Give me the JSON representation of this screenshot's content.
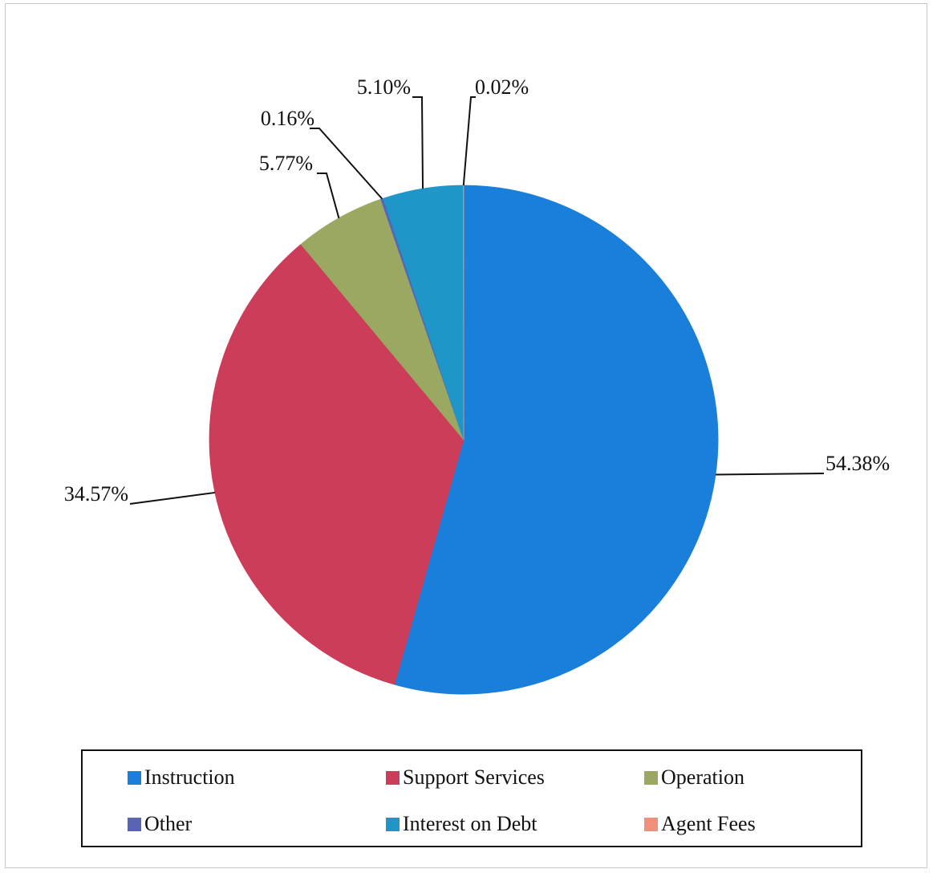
{
  "chart_data": {
    "type": "pie",
    "categories": [
      "Instruction",
      "Support Services",
      "Operation",
      "Other",
      "Interest on Debt",
      "Agent Fees"
    ],
    "values": [
      54.38,
      34.57,
      5.77,
      0.16,
      5.1,
      0.02
    ],
    "data_labels": [
      "54.38%",
      "34.57%",
      "5.77%",
      "0.16%",
      "5.10%",
      "0.02%"
    ],
    "colors": [
      "#1a7fdb",
      "#cc3d5a",
      "#9aa862",
      "#5a64b4",
      "#1e96c8",
      "#f0907a"
    ],
    "start_angle_deg": 0,
    "direction": "clockwise",
    "legend_placement": "bottom",
    "title": ""
  },
  "legend": {
    "items": [
      {
        "label": "Instruction",
        "color": "#1a7fdb"
      },
      {
        "label": "Support Services",
        "color": "#cc3d5a"
      },
      {
        "label": "Operation",
        "color": "#9aa862"
      },
      {
        "label": "Other",
        "color": "#5a64b4"
      },
      {
        "label": "Interest on Debt",
        "color": "#1e96c8"
      },
      {
        "label": "Agent Fees",
        "color": "#f0907a"
      }
    ]
  }
}
